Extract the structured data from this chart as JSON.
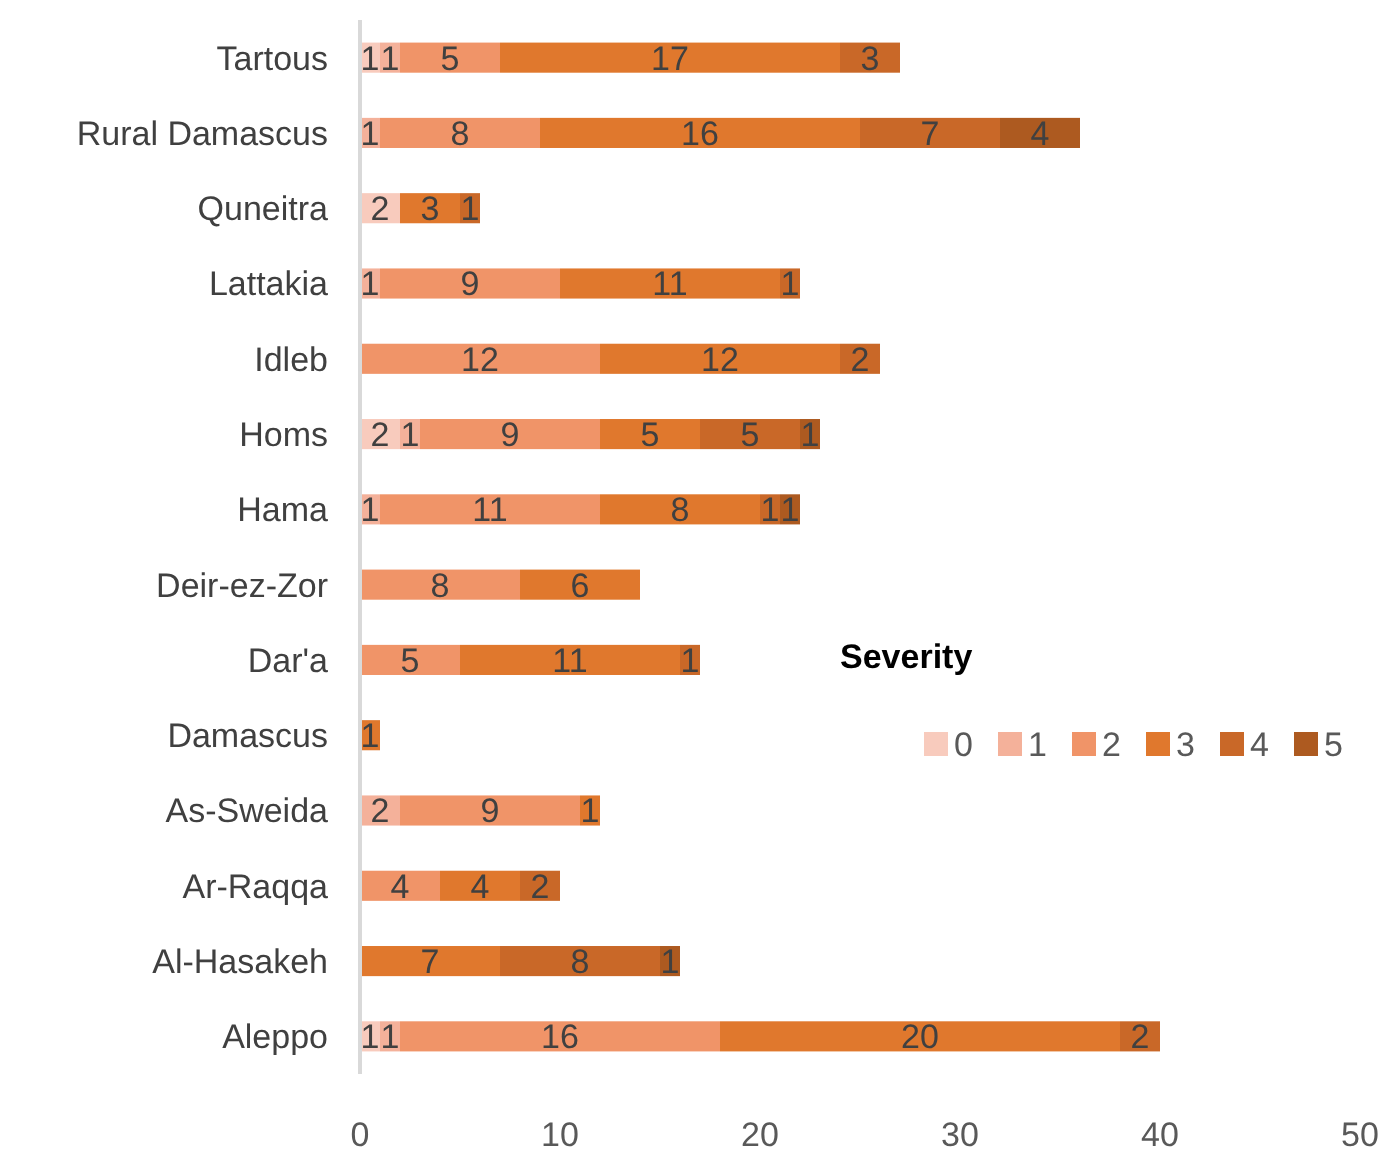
{
  "chart_data": {
    "type": "bar",
    "orientation": "horizontal",
    "stacked": true,
    "data_labels": true,
    "legend": "right",
    "legend_title": "Severity",
    "grid": false,
    "categories": [
      "Tartous",
      "Rural Damascus",
      "Quneitra",
      "Lattakia",
      "Idleb",
      "Homs",
      "Hama",
      "Deir-ez-Zor",
      "Dar'a",
      "Damascus",
      "As-Sweida",
      "Ar-Raqqa",
      "Al-Hasakeh",
      "Aleppo"
    ],
    "xlim": [
      0,
      50
    ],
    "xticks": [
      0,
      10,
      20,
      30,
      40,
      50
    ],
    "series": [
      {
        "name": "0",
        "color": "#f8cbbd",
        "values": [
          1,
          null,
          2,
          null,
          null,
          2,
          null,
          null,
          null,
          null,
          null,
          null,
          null,
          1
        ]
      },
      {
        "name": "1",
        "color": "#f4b19a",
        "values": [
          1,
          1,
          null,
          1,
          null,
          1,
          1,
          null,
          null,
          null,
          2,
          null,
          null,
          1
        ]
      },
      {
        "name": "2",
        "color": "#f09468",
        "values": [
          5,
          8,
          null,
          9,
          12,
          9,
          11,
          8,
          5,
          null,
          9,
          4,
          null,
          16
        ]
      },
      {
        "name": "3",
        "color": "#e0782d",
        "values": [
          17,
          16,
          3,
          11,
          12,
          5,
          8,
          6,
          11,
          1,
          1,
          4,
          7,
          20
        ]
      },
      {
        "name": "4",
        "color": "#c96828",
        "values": [
          3,
          7,
          1,
          1,
          2,
          5,
          1,
          null,
          1,
          null,
          null,
          2,
          8,
          2
        ]
      },
      {
        "name": "5",
        "color": "#ad5a20",
        "values": [
          null,
          4,
          null,
          null,
          null,
          1,
          1,
          null,
          null,
          null,
          null,
          null,
          1,
          null
        ]
      }
    ]
  }
}
